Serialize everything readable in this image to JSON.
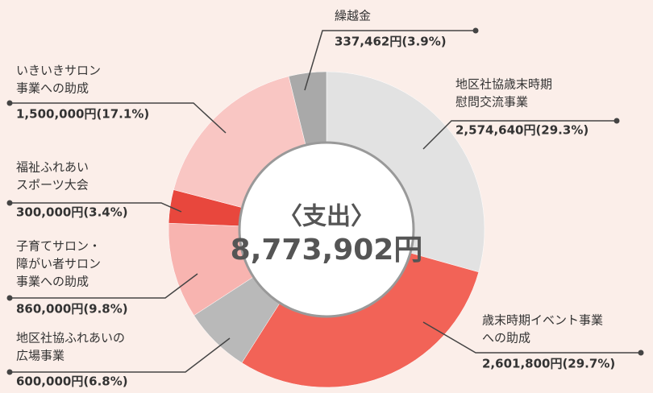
{
  "chart_data": {
    "type": "donut",
    "title": "〈支出〉",
    "total_label": "8,773,902円",
    "categories": [
      [
        "地区社協歳末時期",
        "慰問交流事業"
      ],
      [
        "歳末時期イベント事業",
        "への助成"
      ],
      [
        "地区社協ふれあいの",
        "広場事業"
      ],
      [
        "子育てサロン・",
        "障がい者サロン",
        "事業への助成"
      ],
      [
        "福祉ふれあい",
        "スポーツ大会"
      ],
      [
        "いきいきサロン",
        "事業への助成"
      ],
      [
        "繰越金"
      ]
    ],
    "values": [
      2574640,
      2601800,
      600000,
      860000,
      300000,
      1500000,
      337462
    ],
    "value_labels": [
      "2,574,640円(29.3%)",
      "2,601,800円(29.7%)",
      "600,000円(6.8%)",
      "860,000円(9.8%)",
      "300,000円(3.4%)",
      "1,500,000円(17.1%)",
      "337,462円(3.9%)"
    ],
    "colors": [
      "#e2e2e2",
      "#f26357",
      "#b9b9b9",
      "#f8b4b0",
      "#e8473d",
      "#f9c6c3",
      "#a9a9a9"
    ]
  }
}
